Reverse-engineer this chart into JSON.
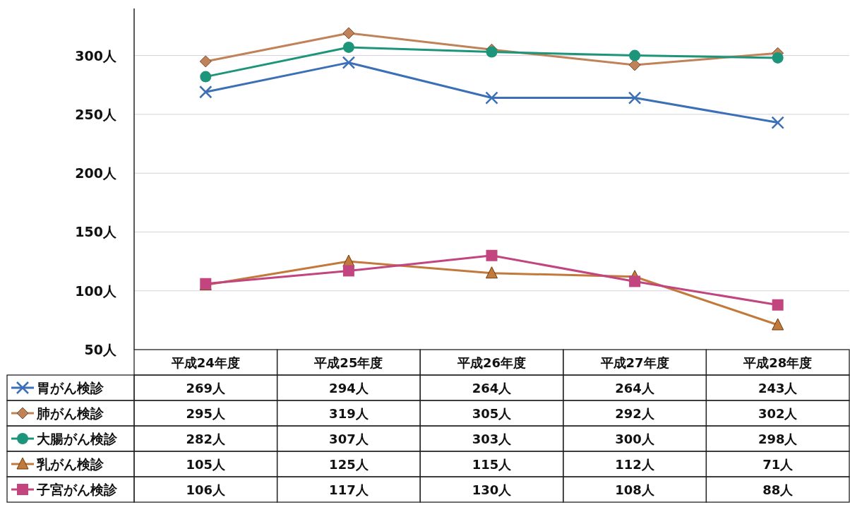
{
  "chart_data": {
    "type": "line",
    "categories": [
      "平成24年度",
      "平成25年度",
      "平成26年度",
      "平成27年度",
      "平成28年度"
    ],
    "series": [
      {
        "name": "胃がん検診",
        "color": "#3b6fb6",
        "marker": "cross",
        "values": [
          269,
          294,
          264,
          264,
          243
        ],
        "value_labels": [
          "269人",
          "294人",
          "264人",
          "264人",
          "243人"
        ]
      },
      {
        "name": "肺がん検診",
        "color": "#c08258",
        "marker": "diamond",
        "values": [
          295,
          319,
          305,
          292,
          302
        ],
        "value_labels": [
          "295人",
          "319人",
          "305人",
          "292人",
          "302人"
        ]
      },
      {
        "name": "大腸がん検診",
        "color": "#1d957a",
        "marker": "circle",
        "values": [
          282,
          307,
          303,
          300,
          298
        ],
        "value_labels": [
          "282人",
          "307人",
          "303人",
          "300人",
          "298人"
        ]
      },
      {
        "name": "乳がん検診",
        "color": "#c27a3c",
        "marker": "triangle",
        "values": [
          105,
          125,
          115,
          112,
          71
        ],
        "value_labels": [
          "105人",
          "125人",
          "115人",
          "112人",
          "71人"
        ]
      },
      {
        "name": "子宮がん検診",
        "color": "#c2457f",
        "marker": "square",
        "values": [
          106,
          117,
          130,
          108,
          88
        ],
        "value_labels": [
          "106人",
          "117人",
          "130人",
          "108人",
          "88人"
        ]
      }
    ],
    "ylim": [
      50,
      340
    ],
    "yticks": [
      {
        "value": 50,
        "label": "50人"
      },
      {
        "value": 100,
        "label": "100人"
      },
      {
        "value": 150,
        "label": "150人"
      },
      {
        "value": 200,
        "label": "200人"
      },
      {
        "value": 250,
        "label": "250人"
      },
      {
        "value": 300,
        "label": "300人"
      }
    ],
    "grid": "y",
    "legend": "bottom"
  }
}
